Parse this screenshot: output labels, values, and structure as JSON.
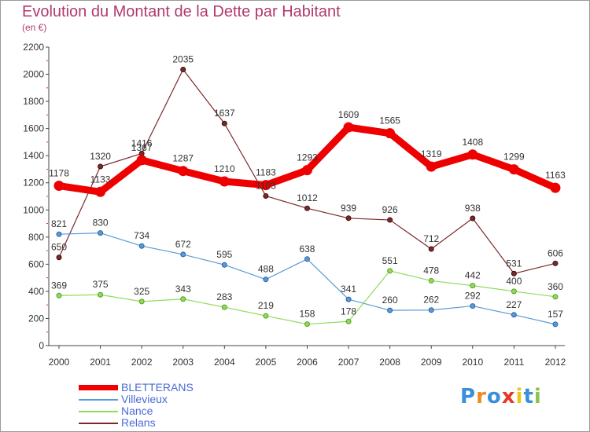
{
  "title": "Evolution du Montant de la Dette par Habitant",
  "subtitle": "(en €)",
  "logo": {
    "text": "Proxiti",
    "letter_colors": [
      "#3a8fd8",
      "#f08a1c",
      "#3a8fd8",
      "#e8362a",
      "#f0c419",
      "#3a8fd8",
      "#8bc34a"
    ]
  },
  "chart_data": {
    "type": "line",
    "x": [
      "2000",
      "2001",
      "2002",
      "2003",
      "2004",
      "2005",
      "2006",
      "2007",
      "2008",
      "2009",
      "2010",
      "2011",
      "2012"
    ],
    "ylim": [
      0,
      2200
    ],
    "yticks": [
      "0",
      "200",
      "400",
      "600",
      "800",
      "1000",
      "1200",
      "1400",
      "1600",
      "1800",
      "2000",
      "2200"
    ],
    "grid": false,
    "legend_position": "bottom-left",
    "series": [
      {
        "name": "BLETTERANS",
        "color": "#ee0000",
        "values": [
          1178,
          1133,
          1367,
          1287,
          1210,
          1183,
          1293,
          1609,
          1565,
          1319,
          1408,
          1299,
          1163
        ]
      },
      {
        "name": "Villevieux",
        "color": "#5b9bd5",
        "values": [
          821,
          830,
          734,
          672,
          595,
          488,
          638,
          341,
          260,
          262,
          292,
          227,
          157
        ]
      },
      {
        "name": "Nance",
        "color": "#8fdc5a",
        "values": [
          369,
          375,
          325,
          343,
          283,
          219,
          158,
          178,
          551,
          478,
          442,
          400,
          360
        ]
      },
      {
        "name": "Relans",
        "color": "#7b2a2a",
        "values": [
          650,
          1320,
          1416,
          2035,
          1637,
          1103,
          1012,
          939,
          926,
          712,
          938,
          531,
          606
        ]
      }
    ],
    "data_labels": [
      [
        "1178",
        "1133",
        "1367",
        "1287",
        "1210",
        "1183",
        "1293",
        "1609",
        "1565",
        "1319",
        "1408",
        "1299",
        "1163"
      ],
      [
        "821",
        "830",
        "734",
        "672",
        "595",
        "488",
        "638",
        "341",
        "260",
        "262",
        "292",
        "227",
        "157"
      ],
      [
        "369",
        "375",
        "325",
        "343",
        "283",
        "219",
        "158",
        "178",
        "551",
        "478",
        "442",
        "400",
        "360"
      ],
      [
        "650",
        "1320",
        "1416",
        "2035",
        "1637",
        "1103",
        "1012",
        "939",
        "926",
        "712",
        "938",
        "531",
        "606"
      ]
    ]
  }
}
